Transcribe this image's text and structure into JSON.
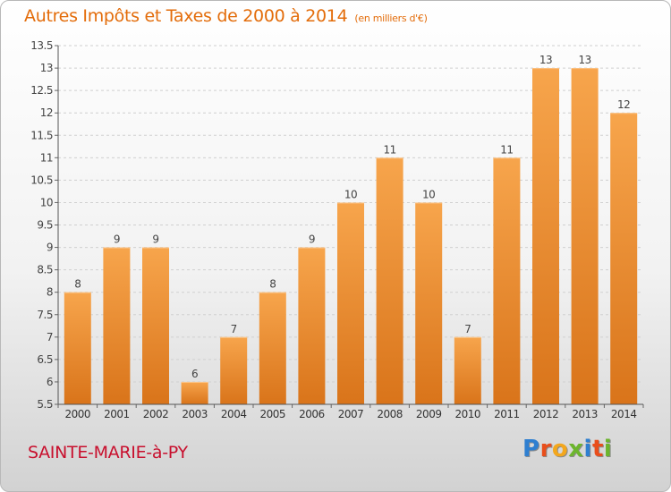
{
  "title": "Autres Impôts et Taxes de 2000 à 2014",
  "unit": "(en milliers d'€)",
  "town": "SAINTE-MARIE-à-PY",
  "logo": {
    "letters": [
      "P",
      "r",
      "o",
      "x",
      "i",
      "t",
      "i"
    ],
    "colors": [
      "#2f7fd0",
      "#e94e1b",
      "#f3a71d",
      "#6cb52d",
      "#2f7fd0",
      "#e94e1b",
      "#6cb52d"
    ]
  },
  "colors": {
    "bar_top": "#f7a54c",
    "bar_bottom": "#d9741a",
    "title": "#e36c0a",
    "town": "#c8102e"
  },
  "chart_data": {
    "type": "bar",
    "categories": [
      "2000",
      "2001",
      "2002",
      "2003",
      "2004",
      "2005",
      "2006",
      "2007",
      "2008",
      "2009",
      "2010",
      "2011",
      "2012",
      "2013",
      "2014"
    ],
    "values": [
      8,
      9,
      9,
      6,
      7,
      8,
      9,
      10,
      11,
      10,
      7,
      11,
      13,
      13,
      12
    ],
    "data_labels": [
      "8",
      "9",
      "9",
      "6",
      "7",
      "8",
      "9",
      "10",
      "11",
      "10",
      "7",
      "11",
      "13",
      "13",
      "12"
    ],
    "yticks": [
      "5.5",
      "6",
      "6.5",
      "7",
      "7.5",
      "8",
      "8.5",
      "9",
      "9.5",
      "10",
      "10.5",
      "11",
      "11.5",
      "12",
      "12.5",
      "13",
      "13.5"
    ],
    "ylim": [
      5.5,
      13.5
    ],
    "grid": true
  }
}
